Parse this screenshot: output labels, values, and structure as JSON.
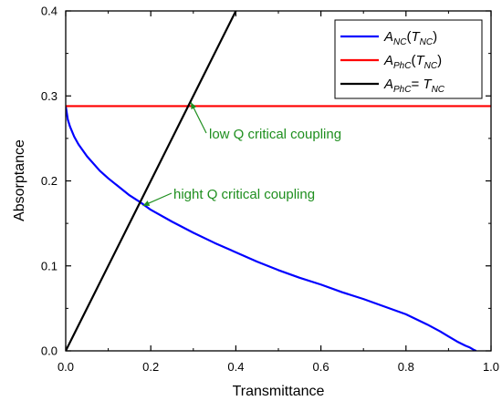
{
  "chart_data": {
    "type": "line",
    "xlabel": "Transmittance",
    "ylabel": "Absorptance",
    "xlim": [
      0.0,
      1.0
    ],
    "ylim": [
      0.0,
      0.4
    ],
    "x_ticks": [
      "0.0",
      "0.2",
      "0.4",
      "0.6",
      "0.8",
      "1.0"
    ],
    "y_ticks": [
      "0.0",
      "0.1",
      "0.2",
      "0.3",
      "0.4"
    ],
    "x_tick_values": [
      0.0,
      0.2,
      0.4,
      0.6,
      0.8,
      1.0
    ],
    "y_tick_values": [
      0.0,
      0.1,
      0.2,
      0.3,
      0.4
    ],
    "grid": false,
    "legend_position": "top-right",
    "series": [
      {
        "key": "anc",
        "legend": {
          "main": "A",
          "sub": "NC",
          "rest1": "(T",
          "sub2": "NC",
          "rest2": ")"
        },
        "color": "#0000ff",
        "x": [
          0.0,
          0.005,
          0.01,
          0.02,
          0.03,
          0.05,
          0.08,
          0.1,
          0.12,
          0.15,
          0.175,
          0.2,
          0.25,
          0.3,
          0.35,
          0.4,
          0.45,
          0.5,
          0.55,
          0.6,
          0.65,
          0.7,
          0.75,
          0.8,
          0.85,
          0.88,
          0.9,
          0.92,
          0.94,
          0.95,
          0.96,
          0.965
        ],
        "y": [
          0.288,
          0.272,
          0.264,
          0.252,
          0.243,
          0.229,
          0.212,
          0.203,
          0.195,
          0.183,
          0.175,
          0.166,
          0.152,
          0.139,
          0.127,
          0.116,
          0.105,
          0.095,
          0.086,
          0.078,
          0.069,
          0.061,
          0.052,
          0.043,
          0.031,
          0.023,
          0.017,
          0.011,
          0.006,
          0.004,
          0.001,
          0.0
        ]
      },
      {
        "key": "aphc",
        "legend": {
          "main": "A",
          "sub": "PhC",
          "rest1": "(T",
          "sub2": "NC",
          "rest2": ")"
        },
        "color": "#ff0000",
        "x": [
          0.0,
          1.0
        ],
        "y": [
          0.288,
          0.288
        ]
      },
      {
        "key": "eq",
        "legend": {
          "main": "A",
          "sub": "PhC",
          "rest1": "= T",
          "sub2": "NC",
          "rest2": ""
        },
        "color": "#000000",
        "x": [
          0.0,
          0.4
        ],
        "y": [
          0.0,
          0.4
        ]
      }
    ],
    "annotations": [
      {
        "key": "low",
        "text": "low Q critical coupling",
        "color": "#1f8f1f",
        "point": [
          0.288,
          0.288
        ]
      },
      {
        "key": "high",
        "text": "hight Q critical coupling",
        "color": "#1f8f1f",
        "point": [
          0.175,
          0.175
        ]
      }
    ]
  }
}
